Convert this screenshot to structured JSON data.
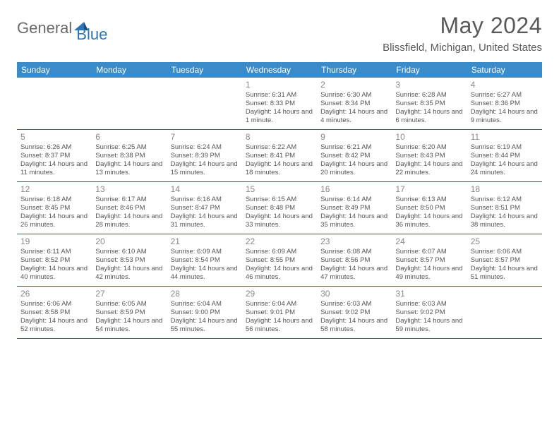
{
  "brand": {
    "part1": "General",
    "part2": "Blue"
  },
  "title": "May 2024",
  "location": "Blissfield, Michigan, United States",
  "colors": {
    "header_bg": "#3a8bc9",
    "week_border": "#2f5f8f",
    "text": "#555555",
    "daynum": "#888888",
    "brand_gray": "#6a6a6a",
    "brand_blue": "#2f75b5"
  },
  "dayHeaders": [
    "Sunday",
    "Monday",
    "Tuesday",
    "Wednesday",
    "Thursday",
    "Friday",
    "Saturday"
  ],
  "weeks": [
    [
      {
        "day": "",
        "sunrise": "",
        "sunset": "",
        "daylight": ""
      },
      {
        "day": "",
        "sunrise": "",
        "sunset": "",
        "daylight": ""
      },
      {
        "day": "",
        "sunrise": "",
        "sunset": "",
        "daylight": ""
      },
      {
        "day": "1",
        "sunrise": "6:31 AM",
        "sunset": "8:33 PM",
        "daylight": "14 hours and 1 minute."
      },
      {
        "day": "2",
        "sunrise": "6:30 AM",
        "sunset": "8:34 PM",
        "daylight": "14 hours and 4 minutes."
      },
      {
        "day": "3",
        "sunrise": "6:28 AM",
        "sunset": "8:35 PM",
        "daylight": "14 hours and 6 minutes."
      },
      {
        "day": "4",
        "sunrise": "6:27 AM",
        "sunset": "8:36 PM",
        "daylight": "14 hours and 9 minutes."
      }
    ],
    [
      {
        "day": "5",
        "sunrise": "6:26 AM",
        "sunset": "8:37 PM",
        "daylight": "14 hours and 11 minutes."
      },
      {
        "day": "6",
        "sunrise": "6:25 AM",
        "sunset": "8:38 PM",
        "daylight": "14 hours and 13 minutes."
      },
      {
        "day": "7",
        "sunrise": "6:24 AM",
        "sunset": "8:39 PM",
        "daylight": "14 hours and 15 minutes."
      },
      {
        "day": "8",
        "sunrise": "6:22 AM",
        "sunset": "8:41 PM",
        "daylight": "14 hours and 18 minutes."
      },
      {
        "day": "9",
        "sunrise": "6:21 AM",
        "sunset": "8:42 PM",
        "daylight": "14 hours and 20 minutes."
      },
      {
        "day": "10",
        "sunrise": "6:20 AM",
        "sunset": "8:43 PM",
        "daylight": "14 hours and 22 minutes."
      },
      {
        "day": "11",
        "sunrise": "6:19 AM",
        "sunset": "8:44 PM",
        "daylight": "14 hours and 24 minutes."
      }
    ],
    [
      {
        "day": "12",
        "sunrise": "6:18 AM",
        "sunset": "8:45 PM",
        "daylight": "14 hours and 26 minutes."
      },
      {
        "day": "13",
        "sunrise": "6:17 AM",
        "sunset": "8:46 PM",
        "daylight": "14 hours and 28 minutes."
      },
      {
        "day": "14",
        "sunrise": "6:16 AM",
        "sunset": "8:47 PM",
        "daylight": "14 hours and 31 minutes."
      },
      {
        "day": "15",
        "sunrise": "6:15 AM",
        "sunset": "8:48 PM",
        "daylight": "14 hours and 33 minutes."
      },
      {
        "day": "16",
        "sunrise": "6:14 AM",
        "sunset": "8:49 PM",
        "daylight": "14 hours and 35 minutes."
      },
      {
        "day": "17",
        "sunrise": "6:13 AM",
        "sunset": "8:50 PM",
        "daylight": "14 hours and 36 minutes."
      },
      {
        "day": "18",
        "sunrise": "6:12 AM",
        "sunset": "8:51 PM",
        "daylight": "14 hours and 38 minutes."
      }
    ],
    [
      {
        "day": "19",
        "sunrise": "6:11 AM",
        "sunset": "8:52 PM",
        "daylight": "14 hours and 40 minutes."
      },
      {
        "day": "20",
        "sunrise": "6:10 AM",
        "sunset": "8:53 PM",
        "daylight": "14 hours and 42 minutes."
      },
      {
        "day": "21",
        "sunrise": "6:09 AM",
        "sunset": "8:54 PM",
        "daylight": "14 hours and 44 minutes."
      },
      {
        "day": "22",
        "sunrise": "6:09 AM",
        "sunset": "8:55 PM",
        "daylight": "14 hours and 46 minutes."
      },
      {
        "day": "23",
        "sunrise": "6:08 AM",
        "sunset": "8:56 PM",
        "daylight": "14 hours and 47 minutes."
      },
      {
        "day": "24",
        "sunrise": "6:07 AM",
        "sunset": "8:57 PM",
        "daylight": "14 hours and 49 minutes."
      },
      {
        "day": "25",
        "sunrise": "6:06 AM",
        "sunset": "8:57 PM",
        "daylight": "14 hours and 51 minutes."
      }
    ],
    [
      {
        "day": "26",
        "sunrise": "6:06 AM",
        "sunset": "8:58 PM",
        "daylight": "14 hours and 52 minutes."
      },
      {
        "day": "27",
        "sunrise": "6:05 AM",
        "sunset": "8:59 PM",
        "daylight": "14 hours and 54 minutes."
      },
      {
        "day": "28",
        "sunrise": "6:04 AM",
        "sunset": "9:00 PM",
        "daylight": "14 hours and 55 minutes."
      },
      {
        "day": "29",
        "sunrise": "6:04 AM",
        "sunset": "9:01 PM",
        "daylight": "14 hours and 56 minutes."
      },
      {
        "day": "30",
        "sunrise": "6:03 AM",
        "sunset": "9:02 PM",
        "daylight": "14 hours and 58 minutes."
      },
      {
        "day": "31",
        "sunrise": "6:03 AM",
        "sunset": "9:02 PM",
        "daylight": "14 hours and 59 minutes."
      },
      {
        "day": "",
        "sunrise": "",
        "sunset": "",
        "daylight": ""
      }
    ]
  ],
  "labels": {
    "sunrise": "Sunrise:",
    "sunset": "Sunset:",
    "daylight": "Daylight:"
  }
}
